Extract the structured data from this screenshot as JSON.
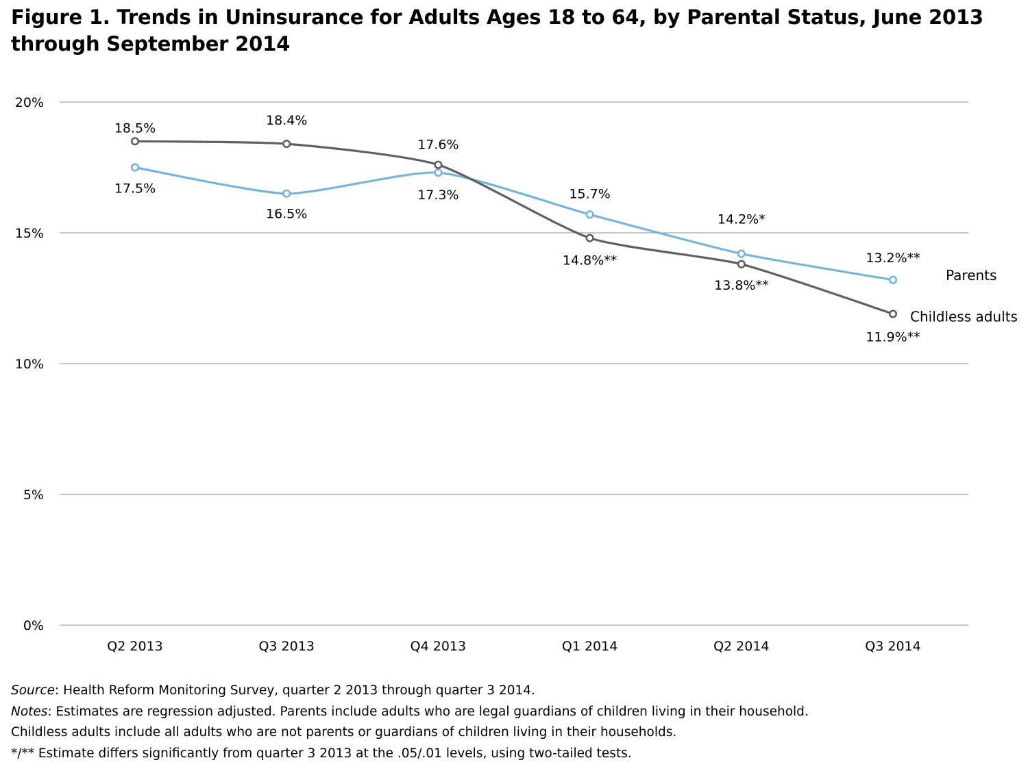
{
  "title": "Figure 1. Trends in Uninsurance for Adults Ages 18 to 64, by Parental Status, June 2013 through September 2014",
  "chart_data": {
    "type": "line",
    "title": "Figure 1. Trends in Uninsurance for Adults Ages 18 to 64, by Parental Status, June 2013 through September 2014",
    "xlabel": "",
    "ylabel": "",
    "categories": [
      "Q2 2013",
      "Q3 2013",
      "Q4 2013",
      "Q1 2014",
      "Q2 2014",
      "Q3 2014"
    ],
    "ylim": [
      0,
      20
    ],
    "yticks": [
      0,
      5,
      10,
      15,
      20
    ],
    "ytick_labels": [
      "0%",
      "5%",
      "10%",
      "15%",
      "20%"
    ],
    "grid": true,
    "series": [
      {
        "name": "Parents",
        "color": "#74b4df",
        "values": [
          17.5,
          16.5,
          17.3,
          15.7,
          14.2,
          13.2
        ],
        "labels": [
          "17.5%",
          "16.5%",
          "17.3%",
          "15.7%",
          "14.2%*",
          "13.2%**"
        ]
      },
      {
        "name": "Childless adults",
        "color": "#606060",
        "values": [
          18.5,
          18.4,
          17.6,
          14.8,
          13.8,
          11.9
        ],
        "labels": [
          "18.5%",
          "18.4%",
          "17.6%",
          "14.8%**",
          "13.8%**",
          "11.9%**"
        ]
      }
    ]
  },
  "notes": {
    "source_label": "Source",
    "source_text": ": Health Reform Monitoring Survey, quarter 2 2013 through quarter 3 2014.",
    "notes_label": "Notes",
    "notes_text": ":  Estimates are regression adjusted. Parents include adults who are legal guardians of children living in their household.",
    "notes_text_2": "Childless adults include all adults who are not parents or guardians of children living in their households.",
    "significance": "*/** Estimate differs significantly from quarter 3 2013 at the .05/.01 levels, using two-tailed tests."
  }
}
